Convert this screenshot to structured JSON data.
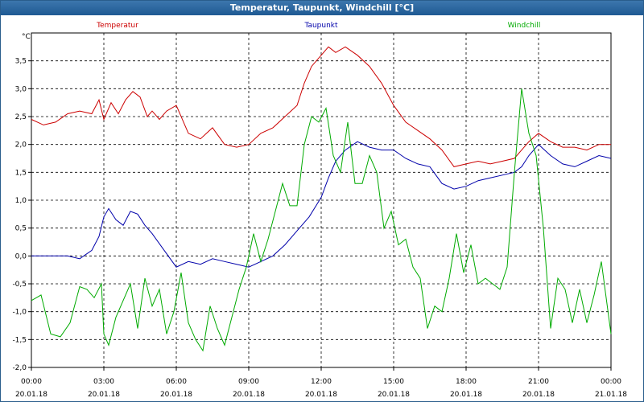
{
  "window": {
    "title": "Temperatur, Taupunkt, Windchill [°C]"
  },
  "chart_data": {
    "type": "line",
    "title": "Temperatur, Taupunkt, Windchill [°C]",
    "ylabel": "°C",
    "xlabel": "",
    "ylim": [
      -2.0,
      4.0
    ],
    "xlim_hours": [
      0,
      24
    ],
    "grid": true,
    "legend": "top",
    "y_ticks": [
      {
        "v": -2.0,
        "label": "-2,0"
      },
      {
        "v": -1.5,
        "label": "-1,5"
      },
      {
        "v": -1.0,
        "label": "-1,0"
      },
      {
        "v": -0.5,
        "label": "-0,5"
      },
      {
        "v": 0.0,
        "label": "0,0"
      },
      {
        "v": 0.5,
        "label": "0,5"
      },
      {
        "v": 1.0,
        "label": "1,0"
      },
      {
        "v": 1.5,
        "label": "1,5"
      },
      {
        "v": 2.0,
        "label": "2,0"
      },
      {
        "v": 2.5,
        "label": "2,5"
      },
      {
        "v": 3.0,
        "label": "3,0"
      },
      {
        "v": 3.5,
        "label": "3,5"
      }
    ],
    "x_ticks": [
      {
        "h": 0,
        "time": "00:00",
        "date": "20.01.18"
      },
      {
        "h": 3,
        "time": "03:00",
        "date": "20.01.18"
      },
      {
        "h": 6,
        "time": "06:00",
        "date": "20.01.18"
      },
      {
        "h": 9,
        "time": "09:00",
        "date": "20.01.18"
      },
      {
        "h": 12,
        "time": "12:00",
        "date": "20.01.18"
      },
      {
        "h": 15,
        "time": "15:00",
        "date": "20.01.18"
      },
      {
        "h": 18,
        "time": "18:00",
        "date": "20.01.18"
      },
      {
        "h": 21,
        "time": "21:00",
        "date": "20.01.18"
      },
      {
        "h": 24,
        "time": "00:00",
        "date": "21.01.18"
      }
    ],
    "series": [
      {
        "name": "Temperatur",
        "color": "#cc0000",
        "x": [
          0,
          0.5,
          1,
          1.5,
          2,
          2.5,
          2.8,
          3,
          3.3,
          3.6,
          3.9,
          4.2,
          4.5,
          4.8,
          5,
          5.3,
          5.6,
          6,
          6.5,
          7,
          7.5,
          8,
          8.5,
          9,
          9.5,
          10,
          10.5,
          11,
          11.3,
          11.6,
          12,
          12.3,
          12.6,
          13,
          13.5,
          14,
          14.5,
          15,
          15.5,
          16,
          16.5,
          17,
          17.5,
          18,
          18.5,
          19,
          19.5,
          20,
          20.3,
          20.6,
          21,
          21.5,
          22,
          22.5,
          23,
          23.5,
          24
        ],
        "values": [
          2.45,
          2.35,
          2.4,
          2.55,
          2.6,
          2.55,
          2.8,
          2.45,
          2.75,
          2.55,
          2.8,
          2.95,
          2.85,
          2.5,
          2.6,
          2.45,
          2.6,
          2.7,
          2.2,
          2.1,
          2.3,
          2.0,
          1.95,
          2.0,
          2.2,
          2.3,
          2.5,
          2.7,
          3.1,
          3.4,
          3.6,
          3.75,
          3.65,
          3.75,
          3.6,
          3.4,
          3.1,
          2.7,
          2.4,
          2.25,
          2.1,
          1.9,
          1.6,
          1.65,
          1.7,
          1.65,
          1.7,
          1.75,
          1.9,
          2.05,
          2.2,
          2.05,
          1.95,
          1.95,
          1.9,
          2.0,
          2.0
        ]
      },
      {
        "name": "Taupunkt",
        "color": "#0000aa",
        "x": [
          0,
          0.5,
          1,
          1.5,
          2,
          2.5,
          2.8,
          3,
          3.2,
          3.5,
          3.8,
          4.1,
          4.4,
          4.7,
          5,
          5.5,
          6,
          6.5,
          7,
          7.5,
          8,
          8.5,
          9,
          9.5,
          10,
          10.5,
          11,
          11.5,
          12,
          12.3,
          12.6,
          13,
          13.5,
          14,
          14.5,
          15,
          15.5,
          16,
          16.5,
          17,
          17.5,
          18,
          18.5,
          19,
          19.5,
          20,
          20.3,
          20.6,
          21,
          21.5,
          22,
          22.5,
          23,
          23.5,
          24
        ],
        "values": [
          0.0,
          0.0,
          0.0,
          0.0,
          -0.05,
          0.1,
          0.35,
          0.7,
          0.85,
          0.65,
          0.55,
          0.8,
          0.75,
          0.55,
          0.4,
          0.1,
          -0.2,
          -0.1,
          -0.15,
          -0.05,
          -0.1,
          -0.15,
          -0.2,
          -0.1,
          0.0,
          0.2,
          0.45,
          0.7,
          1.05,
          1.4,
          1.7,
          1.9,
          2.05,
          1.95,
          1.9,
          1.9,
          1.75,
          1.65,
          1.6,
          1.3,
          1.2,
          1.25,
          1.35,
          1.4,
          1.45,
          1.5,
          1.6,
          1.8,
          2.0,
          1.8,
          1.65,
          1.6,
          1.7,
          1.8,
          1.75
        ]
      },
      {
        "name": "Windchill",
        "color": "#00aa00",
        "x": [
          0,
          0.4,
          0.8,
          1.2,
          1.6,
          2,
          2.3,
          2.6,
          2.9,
          3,
          3.2,
          3.5,
          3.8,
          4.1,
          4.4,
          4.7,
          5,
          5.3,
          5.6,
          5.9,
          6.2,
          6.5,
          6.8,
          7.1,
          7.4,
          7.7,
          8,
          8.3,
          8.6,
          8.9,
          9.2,
          9.5,
          9.8,
          10.1,
          10.4,
          10.7,
          11,
          11.3,
          11.6,
          11.9,
          12.2,
          12.5,
          12.8,
          13.1,
          13.4,
          13.7,
          14,
          14.3,
          14.6,
          14.9,
          15.2,
          15.5,
          15.8,
          16.1,
          16.4,
          16.7,
          17,
          17.3,
          17.6,
          17.9,
          18.2,
          18.5,
          18.8,
          19.1,
          19.4,
          19.7,
          20,
          20.3,
          20.6,
          20.9,
          21.2,
          21.5,
          21.8,
          22.1,
          22.4,
          22.7,
          23,
          23.3,
          23.6,
          24
        ],
        "values": [
          -0.8,
          -0.7,
          -1.4,
          -1.45,
          -1.2,
          -0.55,
          -0.6,
          -0.75,
          -0.5,
          -1.4,
          -1.6,
          -1.1,
          -0.8,
          -0.5,
          -1.3,
          -0.4,
          -0.9,
          -0.6,
          -1.4,
          -1.0,
          -0.3,
          -1.2,
          -1.5,
          -1.7,
          -0.9,
          -1.3,
          -1.6,
          -1.1,
          -0.6,
          -0.2,
          0.4,
          -0.1,
          0.3,
          0.8,
          1.3,
          0.9,
          0.9,
          2.0,
          2.5,
          2.4,
          2.65,
          1.8,
          1.5,
          2.4,
          1.3,
          1.3,
          1.8,
          1.5,
          0.5,
          0.8,
          0.2,
          0.3,
          -0.2,
          -0.4,
          -1.3,
          -0.9,
          -1.0,
          -0.4,
          0.4,
          -0.3,
          0.2,
          -0.5,
          -0.4,
          -0.5,
          -0.6,
          -0.2,
          1.5,
          3.0,
          2.2,
          1.8,
          0.5,
          -1.3,
          -0.4,
          -0.6,
          -1.2,
          -0.6,
          -1.2,
          -0.7,
          -0.1,
          -1.4
        ]
      }
    ]
  }
}
